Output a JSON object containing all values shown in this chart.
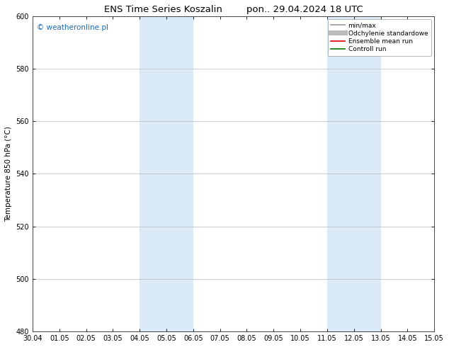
{
  "title_left": "ENS Time Series Koszalin",
  "title_right": "pon.. 29.04.2024 18 UTC",
  "ylabel": "Temperature 850 hPa (°C)",
  "xlim_labels": [
    "30.04",
    "01.05",
    "02.05",
    "03.05",
    "04.05",
    "05.05",
    "06.05",
    "07.05",
    "08.05",
    "09.05",
    "10.05",
    "11.05",
    "12.05",
    "13.05",
    "14.05",
    "15.05"
  ],
  "ylim": [
    480,
    600
  ],
  "yticks": [
    480,
    500,
    520,
    540,
    560,
    580,
    600
  ],
  "shaded_bands": [
    {
      "xstart": 4,
      "xend": 6,
      "color": "#daeaf7"
    },
    {
      "xstart": 11,
      "xend": 13,
      "color": "#daeaf7"
    }
  ],
  "background_color": "#ffffff",
  "plot_bg_color": "#ffffff",
  "grid_color": "#bbbbbb",
  "watermark_text": "© weatheronline.pl",
  "watermark_color": "#1a6bb5",
  "legend_items": [
    {
      "label": "min/max",
      "color": "#999999",
      "lw": 1.2,
      "style": "-"
    },
    {
      "label": "Odchylenie standardowe",
      "color": "#bbbbbb",
      "lw": 5,
      "style": "-"
    },
    {
      "label": "Ensemble mean run",
      "color": "#dd0000",
      "lw": 1.2,
      "style": "-"
    },
    {
      "label": "Controll run",
      "color": "#007700",
      "lw": 1.2,
      "style": "-"
    }
  ],
  "title_fontsize": 9.5,
  "tick_fontsize": 7,
  "ylabel_fontsize": 7.5,
  "watermark_fontsize": 7.5,
  "legend_fontsize": 6.5
}
